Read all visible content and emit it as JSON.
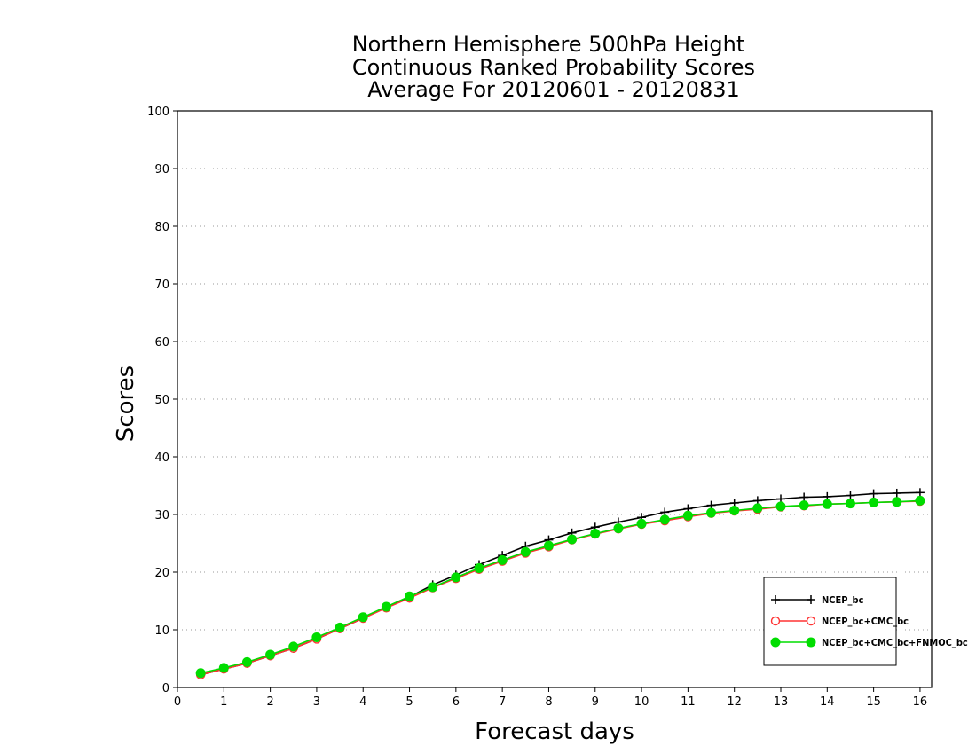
{
  "chart_data": {
    "type": "line",
    "title_lines": [
      "Northern Hemisphere 500hPa Height",
      "Continuous Ranked Probability Scores",
      "Average For 20120601 - 20120831"
    ],
    "xlabel": "Forecast days",
    "ylabel": "Scores",
    "xlim": [
      0,
      16.25
    ],
    "ylim": [
      0,
      100
    ],
    "x_ticks": [
      0,
      1,
      2,
      3,
      4,
      5,
      6,
      7,
      8,
      9,
      10,
      11,
      12,
      13,
      14,
      15,
      16
    ],
    "y_ticks": [
      0,
      10,
      20,
      30,
      40,
      50,
      60,
      70,
      80,
      90,
      100
    ],
    "grid": "horizontal dotted",
    "legend_position": "bottom-right",
    "x": [
      0.5,
      1,
      1.5,
      2,
      2.5,
      3,
      3.5,
      4,
      4.5,
      5,
      5.5,
      6,
      6.5,
      7,
      7.5,
      8,
      8.5,
      9,
      9.5,
      10,
      10.5,
      11,
      11.5,
      12,
      12.5,
      13,
      13.5,
      14,
      14.5,
      15,
      15.5,
      16
    ],
    "series": [
      {
        "name": "NCEP_bc",
        "color": "#000000",
        "marker": "plus",
        "values": [
          2.2,
          3.2,
          4.2,
          5.5,
          6.8,
          8.4,
          10.2,
          12.0,
          13.9,
          15.7,
          17.8,
          19.5,
          21.3,
          22.9,
          24.5,
          25.6,
          26.8,
          27.8,
          28.7,
          29.5,
          30.4,
          31.0,
          31.6,
          32.0,
          32.4,
          32.7,
          33.0,
          33.1,
          33.3,
          33.6,
          33.7,
          33.8
        ]
      },
      {
        "name": "NCEP_bc+CMC_bc",
        "color": "#ff3333",
        "marker": "open-circle",
        "values": [
          2.2,
          3.2,
          4.2,
          5.5,
          6.8,
          8.4,
          10.2,
          12.0,
          13.8,
          15.5,
          17.3,
          18.9,
          20.5,
          21.9,
          23.3,
          24.4,
          25.6,
          26.6,
          27.5,
          28.3,
          28.9,
          29.6,
          30.2,
          30.6,
          30.9,
          31.3,
          31.5,
          31.8,
          31.9,
          32.1,
          32.2,
          32.3
        ]
      },
      {
        "name": "NCEP_bc+CMC_bc+FNMOC_bc",
        "color": "#00dd00",
        "marker": "filled-circle",
        "values": [
          2.5,
          3.4,
          4.4,
          5.7,
          7.1,
          8.7,
          10.4,
          12.2,
          14.0,
          15.8,
          17.4,
          19.1,
          20.7,
          22.1,
          23.5,
          24.6,
          25.7,
          26.7,
          27.6,
          28.4,
          29.1,
          29.8,
          30.3,
          30.7,
          31.1,
          31.4,
          31.6,
          31.8,
          31.9,
          32.1,
          32.2,
          32.4
        ]
      }
    ]
  }
}
